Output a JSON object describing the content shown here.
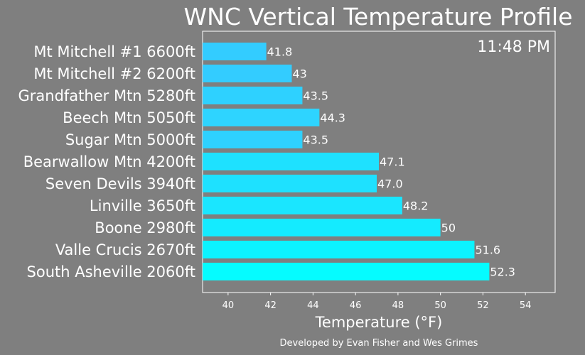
{
  "chart_data": {
    "type": "bar",
    "orientation": "horizontal",
    "title": "WNC Vertical Temperature Profile",
    "timestamp": "11:48 PM",
    "xlabel": "Temperature (°F)",
    "ylabel": "",
    "credit": "Developed by Evan Fisher and Wes Grimes",
    "xlim": [
      38.8,
      55.4
    ],
    "xticks": [
      "40",
      "42",
      "44",
      "46",
      "48",
      "50",
      "52",
      "54"
    ],
    "grid": false,
    "categories": [
      "Mt Mitchell #1 6600ft",
      "Mt Mitchell #2 6200ft",
      "Grandfather Mtn 5280ft",
      "Beech Mtn 5050ft",
      "Sugar Mtn 5000ft",
      "Bearwallow Mtn 4200ft",
      "Seven Devils 3940ft",
      "Linville 3650ft",
      "Boone 2980ft",
      "Valle Crucis 2670ft",
      "South Asheville 2060ft"
    ],
    "values": [
      41.8,
      43,
      43.5,
      44.3,
      43.5,
      47.1,
      47.0,
      48.2,
      50,
      51.6,
      52.3
    ],
    "value_labels": [
      "41.8",
      "43",
      "43.5",
      "44.3",
      "43.5",
      "47.1",
      "47.0",
      "48.2",
      "50",
      "51.6",
      "52.3"
    ],
    "bar_colors": [
      "#33ccff",
      "#33ccff",
      "#2ed1ff",
      "#2ed4ff",
      "#2ed1ff",
      "#1ee1ff",
      "#1ee1ff",
      "#1ae6ff",
      "#14ebff",
      "#0cf3ff",
      "#05fcff"
    ],
    "colors": {
      "background": "#7f7f7f",
      "text": "#ffffff",
      "axes": "#ffffff"
    }
  }
}
